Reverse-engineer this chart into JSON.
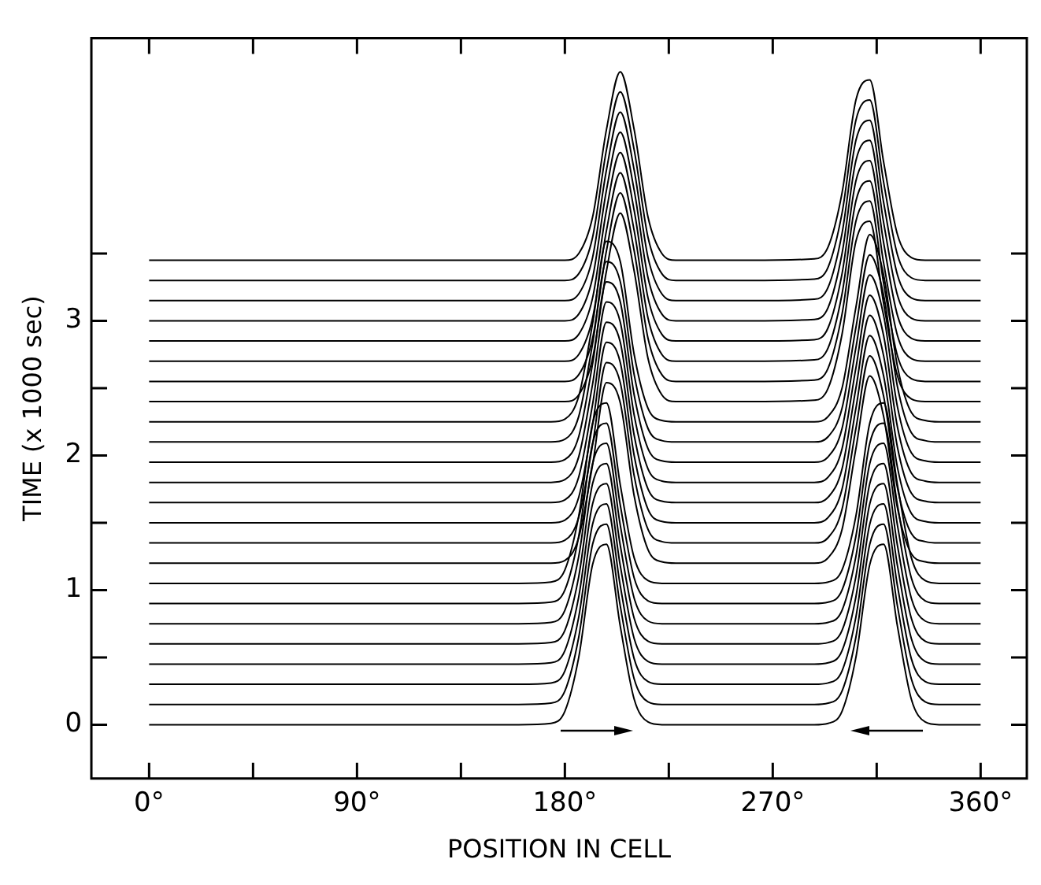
{
  "chart_data": {
    "type": "line",
    "xlabel": "POSITION IN CELL",
    "ylabel": "TIME (x 1000 sec)",
    "xlim": [
      -25,
      380
    ],
    "ylim": [
      -0.4,
      5.1
    ],
    "xticks": [
      {
        "value": 0,
        "label": "0°"
      },
      {
        "value": 45,
        "label": null
      },
      {
        "value": 90,
        "label": "90°"
      },
      {
        "value": 135,
        "label": null
      },
      {
        "value": 180,
        "label": "180°"
      },
      {
        "value": 225,
        "label": null
      },
      {
        "value": 270,
        "label": "270°"
      },
      {
        "value": 315,
        "label": null
      },
      {
        "value": 360,
        "label": "360°"
      }
    ],
    "yticks": [
      0,
      {
        "value": 0.5,
        "label": null
      },
      1,
      {
        "value": 1.5,
        "label": null
      },
      2,
      {
        "value": 2.5,
        "label": null
      },
      3,
      {
        "value": 3.5,
        "label": null
      }
    ],
    "marker": "none",
    "line_style": "solid",
    "x": [
      0,
      160,
      174,
      180,
      186,
      192,
      198,
      204,
      210,
      216,
      222,
      228,
      240,
      260,
      288,
      294,
      300,
      306,
      312,
      318,
      324,
      330,
      336,
      342,
      360
    ],
    "series": [
      {
        "color": "#000000",
        "values": [
          0,
          0,
          0.01,
          0.1,
          0.5,
          1.19,
          1.34,
          0.73,
          0.19,
          0.02,
          0,
          0,
          0,
          0,
          0,
          0.01,
          0.1,
          0.5,
          1.19,
          1.34,
          0.73,
          0.19,
          0.02,
          0,
          0
        ]
      },
      {
        "color": "#000000",
        "values": [
          0.15,
          0.15,
          0.16,
          0.25,
          0.65,
          1.34,
          1.49,
          0.88,
          0.34,
          0.17,
          0.15,
          0.15,
          0.15,
          0.15,
          0.15,
          0.16,
          0.25,
          0.65,
          1.34,
          1.49,
          0.88,
          0.34,
          0.17,
          0.15,
          0.15
        ]
      },
      {
        "color": "#000000",
        "values": [
          0.3,
          0.3,
          0.31,
          0.4,
          0.8,
          1.49,
          1.64,
          1.03,
          0.49,
          0.32,
          0.3,
          0.3,
          0.3,
          0.3,
          0.3,
          0.31,
          0.4,
          0.8,
          1.49,
          1.64,
          1.03,
          0.49,
          0.32,
          0.3,
          0.3
        ]
      },
      {
        "color": "#000000",
        "values": [
          0.45,
          0.45,
          0.46,
          0.55,
          0.95,
          1.64,
          1.79,
          1.18,
          0.64,
          0.47,
          0.45,
          0.45,
          0.45,
          0.45,
          0.45,
          0.46,
          0.55,
          0.95,
          1.64,
          1.79,
          1.18,
          0.64,
          0.47,
          0.45,
          0.45
        ]
      },
      {
        "color": "#000000",
        "values": [
          0.6,
          0.6,
          0.61,
          0.7,
          1.1,
          1.79,
          1.94,
          1.33,
          0.79,
          0.62,
          0.6,
          0.6,
          0.6,
          0.6,
          0.6,
          0.61,
          0.7,
          1.1,
          1.79,
          1.94,
          1.33,
          0.79,
          0.62,
          0.6,
          0.6
        ]
      },
      {
        "color": "#000000",
        "values": [
          0.75,
          0.75,
          0.76,
          0.85,
          1.25,
          1.94,
          2.09,
          1.48,
          0.94,
          0.77,
          0.75,
          0.75,
          0.75,
          0.75,
          0.75,
          0.76,
          0.85,
          1.25,
          1.94,
          2.09,
          1.48,
          0.94,
          0.77,
          0.75,
          0.75
        ]
      },
      {
        "color": "#000000",
        "values": [
          0.9,
          0.9,
          0.91,
          1,
          1.4,
          2.09,
          2.24,
          1.63,
          1.09,
          0.92,
          0.9,
          0.9,
          0.9,
          0.9,
          0.9,
          0.91,
          1,
          1.4,
          2.09,
          2.24,
          1.63,
          1.09,
          0.92,
          0.9,
          0.9
        ]
      },
      {
        "color": "#000000",
        "values": [
          1.05,
          1.05,
          1.06,
          1.15,
          1.55,
          2.24,
          2.39,
          1.78,
          1.24,
          1.07,
          1.05,
          1.05,
          1.05,
          1.05,
          1.05,
          1.06,
          1.15,
          1.55,
          2.24,
          2.39,
          1.78,
          1.24,
          1.07,
          1.05,
          1.05
        ]
      },
      {
        "color": "#000000",
        "values": [
          1.2,
          1.2,
          1.2,
          1.22,
          1.39,
          1.93,
          2.54,
          2.39,
          1.7,
          1.3,
          1.21,
          1.2,
          1.2,
          1.2,
          1.2,
          1.24,
          1.45,
          2.05,
          2.59,
          2.29,
          1.61,
          1.27,
          1.21,
          1.2,
          1.2
        ]
      },
      {
        "color": "#000000",
        "values": [
          1.35,
          1.35,
          1.35,
          1.37,
          1.54,
          2.08,
          2.69,
          2.54,
          1.85,
          1.45,
          1.36,
          1.35,
          1.35,
          1.35,
          1.35,
          1.39,
          1.6,
          2.2,
          2.74,
          2.44,
          1.76,
          1.42,
          1.36,
          1.35,
          1.35
        ]
      },
      {
        "color": "#000000",
        "values": [
          1.5,
          1.5,
          1.5,
          1.52,
          1.69,
          2.23,
          2.84,
          2.69,
          2,
          1.6,
          1.51,
          1.5,
          1.5,
          1.5,
          1.5,
          1.54,
          1.75,
          2.35,
          2.89,
          2.59,
          1.91,
          1.57,
          1.51,
          1.5,
          1.5
        ]
      },
      {
        "color": "#000000",
        "values": [
          1.65,
          1.65,
          1.65,
          1.67,
          1.84,
          2.38,
          2.99,
          2.84,
          2.15,
          1.75,
          1.66,
          1.65,
          1.65,
          1.65,
          1.65,
          1.69,
          1.9,
          2.5,
          3.04,
          2.74,
          2.06,
          1.72,
          1.66,
          1.65,
          1.65
        ]
      },
      {
        "color": "#000000",
        "values": [
          1.8,
          1.8,
          1.8,
          1.82,
          1.99,
          2.53,
          3.14,
          2.99,
          2.3,
          1.9,
          1.81,
          1.8,
          1.8,
          1.8,
          1.8,
          1.84,
          2.05,
          2.65,
          3.19,
          2.89,
          2.21,
          1.87,
          1.81,
          1.8,
          1.8
        ]
      },
      {
        "color": "#000000",
        "values": [
          1.95,
          1.95,
          1.95,
          1.97,
          2.14,
          2.68,
          3.29,
          3.14,
          2.45,
          2.05,
          1.96,
          1.95,
          1.95,
          1.95,
          1.95,
          1.99,
          2.2,
          2.8,
          3.34,
          3.04,
          2.36,
          2.02,
          1.96,
          1.95,
          1.95
        ]
      },
      {
        "color": "#000000",
        "values": [
          2.1,
          2.1,
          2.1,
          2.12,
          2.29,
          2.83,
          3.44,
          3.29,
          2.6,
          2.2,
          2.11,
          2.1,
          2.1,
          2.1,
          2.1,
          2.14,
          2.35,
          2.95,
          3.49,
          3.19,
          2.51,
          2.17,
          2.11,
          2.1,
          2.1
        ]
      },
      {
        "color": "#000000",
        "values": [
          2.25,
          2.25,
          2.25,
          2.27,
          2.44,
          2.98,
          3.59,
          3.44,
          2.75,
          2.35,
          2.26,
          2.25,
          2.25,
          2.25,
          2.25,
          2.29,
          2.5,
          3.1,
          3.64,
          3.34,
          2.66,
          2.32,
          2.26,
          2.25,
          2.25
        ]
      },
      {
        "color": "#000000",
        "values": [
          2.4,
          2.4,
          2.4,
          2.4,
          2.45,
          2.72,
          3.37,
          3.8,
          3.37,
          2.72,
          2.45,
          2.4,
          2.4,
          2.4,
          2.41,
          2.5,
          2.9,
          3.59,
          3.74,
          3.13,
          2.59,
          2.42,
          2.4,
          2.4,
          2.4
        ]
      },
      {
        "color": "#000000",
        "values": [
          2.55,
          2.55,
          2.55,
          2.55,
          2.6,
          2.87,
          3.52,
          3.95,
          3.52,
          2.87,
          2.6,
          2.55,
          2.55,
          2.55,
          2.56,
          2.65,
          3.05,
          3.74,
          3.89,
          3.28,
          2.74,
          2.57,
          2.55,
          2.55,
          2.55
        ]
      },
      {
        "color": "#000000",
        "values": [
          2.7,
          2.7,
          2.7,
          2.7,
          2.75,
          3.02,
          3.67,
          4.1,
          3.67,
          3.02,
          2.75,
          2.7,
          2.7,
          2.7,
          2.71,
          2.8,
          3.2,
          3.89,
          4.04,
          3.43,
          2.89,
          2.72,
          2.7,
          2.7,
          2.7
        ]
      },
      {
        "color": "#000000",
        "values": [
          2.85,
          2.85,
          2.85,
          2.85,
          2.9,
          3.17,
          3.82,
          4.25,
          3.82,
          3.17,
          2.9,
          2.85,
          2.85,
          2.85,
          2.86,
          2.95,
          3.35,
          4.04,
          4.19,
          3.58,
          3.04,
          2.87,
          2.85,
          2.85,
          2.85
        ]
      },
      {
        "color": "#000000",
        "values": [
          3,
          3,
          3,
          3,
          3.05,
          3.32,
          3.97,
          4.4,
          3.97,
          3.32,
          3.05,
          3,
          3,
          3,
          3.01,
          3.1,
          3.5,
          4.19,
          4.34,
          3.73,
          3.19,
          3.02,
          3,
          3,
          3
        ]
      },
      {
        "color": "#000000",
        "values": [
          3.15,
          3.15,
          3.15,
          3.15,
          3.2,
          3.47,
          4.12,
          4.55,
          4.12,
          3.47,
          3.2,
          3.15,
          3.15,
          3.15,
          3.16,
          3.25,
          3.65,
          4.34,
          4.49,
          3.88,
          3.34,
          3.17,
          3.15,
          3.15,
          3.15
        ]
      },
      {
        "color": "#000000",
        "values": [
          3.3,
          3.3,
          3.3,
          3.3,
          3.35,
          3.62,
          4.27,
          4.7,
          4.27,
          3.62,
          3.35,
          3.3,
          3.3,
          3.3,
          3.31,
          3.4,
          3.8,
          4.49,
          4.64,
          4.03,
          3.49,
          3.32,
          3.3,
          3.3,
          3.3
        ]
      },
      {
        "color": "#000000",
        "values": [
          3.45,
          3.45,
          3.45,
          3.45,
          3.5,
          3.77,
          4.42,
          4.85,
          4.42,
          3.77,
          3.5,
          3.45,
          3.45,
          3.45,
          3.46,
          3.55,
          3.95,
          4.64,
          4.79,
          4.18,
          3.64,
          3.47,
          3.45,
          3.45,
          3.45
        ]
      }
    ]
  }
}
